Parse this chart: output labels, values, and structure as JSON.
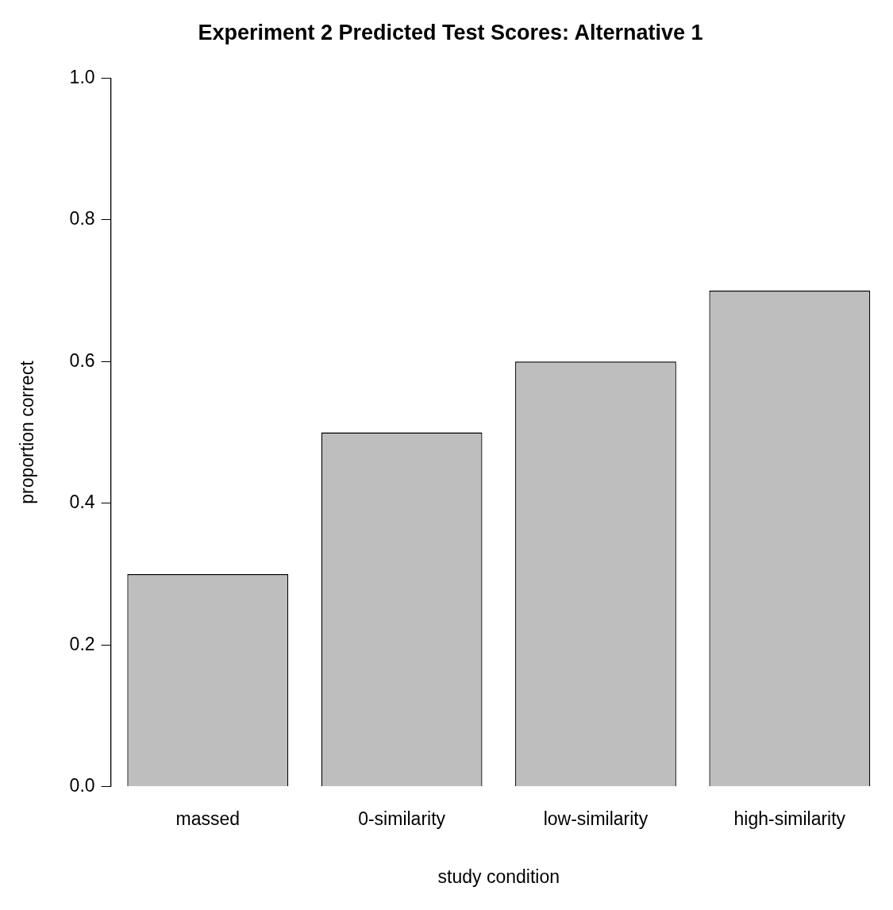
{
  "chart_data": {
    "type": "bar",
    "title": "Experiment 2 Predicted Test Scores: Alternative 1",
    "xlabel": "study condition",
    "ylabel": "proportion correct",
    "categories": [
      "massed",
      "0-similarity",
      "low-similarity",
      "high-similarity"
    ],
    "values": [
      0.3,
      0.5,
      0.6,
      0.7
    ],
    "color": "#bebebe",
    "ylim": [
      0,
      1
    ],
    "yticks": [
      {
        "value": 0,
        "label": "0.0"
      },
      0.2,
      0.4,
      0.6,
      0.8,
      {
        "value": 1,
        "label": "1.0"
      }
    ],
    "grid": false,
    "legend": false
  }
}
